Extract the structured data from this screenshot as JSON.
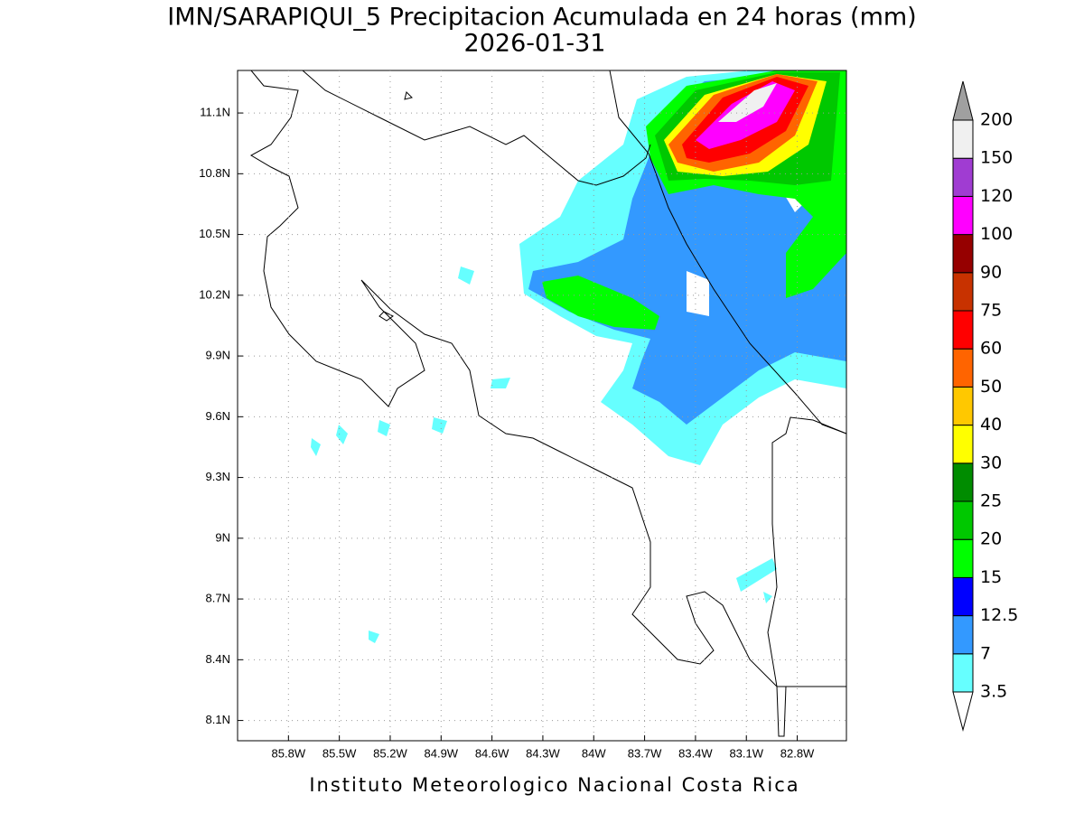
{
  "title": "IMN/SARAPIQUI_5 Precipitacion Acumulada en 24 horas (mm)",
  "subtitle": "2026-01-31",
  "map": {
    "xlim": [
      -86.1,
      -82.51
    ],
    "ylim": [
      8.0,
      11.31
    ],
    "xticks": [
      {
        "value": -85.8,
        "label": "85.8W"
      },
      {
        "value": -85.5,
        "label": "85.5W"
      },
      {
        "value": -85.2,
        "label": "85.2W"
      },
      {
        "value": -84.9,
        "label": "84.9W"
      },
      {
        "value": -84.6,
        "label": "84.6W"
      },
      {
        "value": -84.3,
        "label": "84.3W"
      },
      {
        "value": -84.0,
        "label": "84W"
      },
      {
        "value": -83.7,
        "label": "83.7W"
      },
      {
        "value": -83.4,
        "label": "83.4W"
      },
      {
        "value": -83.1,
        "label": "83.1W"
      },
      {
        "value": -82.8,
        "label": "82.8W"
      }
    ],
    "yticks": [
      {
        "value": 8.1,
        "label": "8.1N"
      },
      {
        "value": 8.4,
        "label": "8.4N"
      },
      {
        "value": 8.7,
        "label": "8.7N"
      },
      {
        "value": 9.0,
        "label": "9N"
      },
      {
        "value": 9.3,
        "label": "9.3N"
      },
      {
        "value": 9.6,
        "label": "9.6N"
      },
      {
        "value": 9.9,
        "label": "9.9N"
      },
      {
        "value": 10.2,
        "label": "10.2N"
      },
      {
        "value": 10.5,
        "label": "10.5N"
      },
      {
        "value": 10.8,
        "label": "10.8N"
      },
      {
        "value": 11.1,
        "label": "11.1N"
      }
    ],
    "grid": true
  },
  "colorbar": {
    "levels": [
      3.5,
      7,
      12.5,
      15,
      20,
      25,
      30,
      40,
      50,
      60,
      75,
      90,
      100,
      120,
      150,
      200
    ],
    "colors": [
      "#ffffff",
      "#66ffff",
      "#3399ff",
      "#0000ff",
      "#00ff00",
      "#00c800",
      "#008c00",
      "#ffff00",
      "#ffc800",
      "#ff6400",
      "#ff0000",
      "#c83200",
      "#960000",
      "#ff00ff",
      "#a03cd2",
      "#f0f0f0",
      "#a0a0a0"
    ]
  },
  "footer": "Instituto Meteorologico Nacional Costa Rica"
}
